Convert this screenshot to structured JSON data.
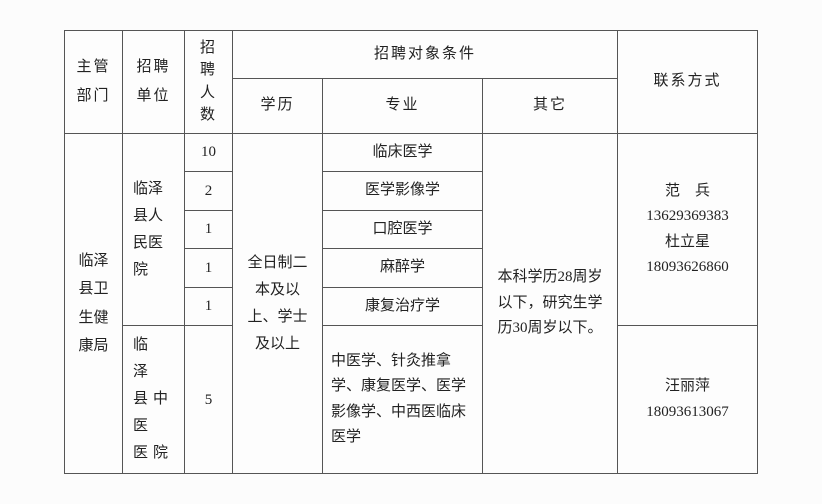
{
  "header": {
    "dept": "主管部门",
    "unit": "招聘单位",
    "count": "招聘人数",
    "cond": "招聘对象条件",
    "edu": "学历",
    "major": "专业",
    "other": "其它",
    "contact": "联系方式"
  },
  "dept": "临泽县卫生健康局",
  "unit1": "临泽县人民医院",
  "unit2": "临 泽 县中 医 医院",
  "edu": "全日制二本及以上、学士及以上",
  "other": "本科学历28周岁以下，研究生学历30周岁以下。",
  "rows": {
    "r1": {
      "n": "10",
      "m": "临床医学"
    },
    "r2": {
      "n": "2",
      "m": "医学影像学"
    },
    "r3": {
      "n": "1",
      "m": "口腔医学"
    },
    "r4": {
      "n": "1",
      "m": "麻醉学"
    },
    "r5": {
      "n": "1",
      "m": "康复治疗学"
    },
    "r6": {
      "n": "5",
      "m": "中医学、针灸推拿学、康复医学、医学影像学、中西医临床医学"
    }
  },
  "contact1": "范　兵\n13629369383\n杜立星\n18093626860",
  "contact2": "汪丽萍\n18093613067"
}
